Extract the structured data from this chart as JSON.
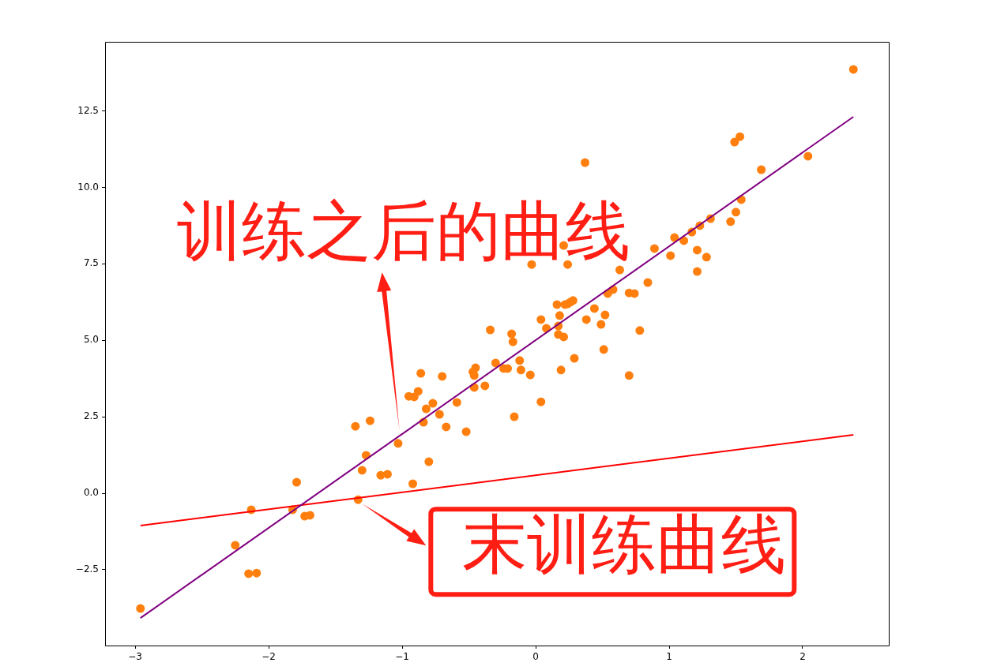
{
  "chart_data": {
    "type": "scatter",
    "xlim": [
      -3.225,
      2.645
    ],
    "ylim": [
      -4.98,
      14.76
    ],
    "xticks": [
      {
        "value": -3,
        "label": "−3"
      },
      {
        "value": -2,
        "label": "−2"
      },
      {
        "value": -1,
        "label": "−1"
      },
      0,
      1,
      2
    ],
    "yticks": [
      {
        "value": -2.5,
        "label": "−2.5"
      },
      {
        "value": 0,
        "label": "0.0"
      },
      2.5,
      {
        "value": 5,
        "label": "5.0"
      },
      7.5,
      {
        "value": 10,
        "label": "10.0"
      },
      12.5
    ],
    "grid": false,
    "legend": false,
    "marker": "circle",
    "series": [
      {
        "type": "scatter",
        "color": "#ff7f0e",
        "x": [
          -2.96,
          -2.25,
          -2.15,
          -2.09,
          -2.13,
          -1.79,
          -1.82,
          -1.73,
          -1.69,
          -1.35,
          -1.33,
          -1.3,
          -1.27,
          -1.24,
          -1.16,
          -1.11,
          -1.03,
          -0.95,
          -0.91,
          -0.88,
          -0.92,
          -0.86,
          -0.84,
          -0.82,
          -0.8,
          -0.77,
          -0.72,
          -0.7,
          -0.67,
          -0.59,
          -0.52,
          -0.47,
          -0.45,
          -0.46,
          -0.46,
          -0.38,
          -0.34,
          -0.3,
          -0.24,
          -0.21,
          -0.18,
          -0.17,
          -0.16,
          -0.12,
          -0.11,
          -0.04,
          -0.03,
          0.04,
          0.04,
          0.08,
          0.16,
          0.17,
          0.17,
          0.18,
          0.19,
          0.21,
          0.22,
          0.21,
          0.24,
          0.24,
          0.26,
          0.28,
          0.29,
          0.37,
          0.38,
          0.44,
          0.49,
          0.51,
          0.52,
          0.54,
          0.58,
          0.63,
          0.7,
          0.7,
          0.74,
          0.78,
          0.84,
          0.89,
          1.01,
          1.04,
          1.11,
          1.17,
          1.21,
          1.21,
          1.23,
          1.28,
          1.31,
          1.46,
          1.49,
          1.5,
          1.53,
          1.54,
          1.69,
          2.04,
          2.38
        ],
        "values": [
          -3.77,
          -1.7,
          -2.63,
          -2.61,
          -0.54,
          0.36,
          -0.54,
          -0.75,
          -0.72,
          2.19,
          -0.21,
          0.75,
          1.24,
          2.37,
          0.59,
          0.62,
          1.63,
          3.17,
          3.15,
          3.33,
          0.31,
          3.92,
          2.32,
          2.76,
          1.03,
          2.94,
          2.58,
          3.82,
          2.17,
          2.97,
          2.01,
          3.97,
          4.1,
          3.85,
          3.46,
          3.51,
          5.34,
          4.26,
          4.08,
          4.08,
          5.21,
          4.95,
          2.5,
          4.34,
          4.03,
          3.87,
          7.48,
          2.99,
          5.68,
          5.39,
          6.17,
          5.47,
          5.19,
          5.81,
          4.03,
          8.1,
          6.17,
          5.11,
          6.19,
          7.48,
          6.25,
          6.3,
          4.41,
          10.81,
          5.68,
          6.04,
          5.52,
          4.7,
          5.83,
          6.53,
          6.66,
          7.3,
          6.55,
          3.85,
          6.53,
          5.32,
          6.89,
          8.0,
          7.77,
          8.36,
          8.26,
          8.54,
          7.95,
          7.25,
          8.75,
          7.72,
          8.98,
          8.88,
          11.48,
          9.19,
          11.66,
          9.6,
          10.58,
          11.02,
          13.86
        ]
      },
      {
        "type": "line",
        "color": "#800080",
        "marker": "none",
        "x": [
          -2.96,
          2.38
        ],
        "values": [
          -4.08,
          12.31
        ]
      },
      {
        "type": "line",
        "color": "#ff0000",
        "marker": "none",
        "x": [
          -2.96,
          2.38
        ],
        "values": [
          -1.06,
          1.91
        ]
      }
    ],
    "annotations": [
      {
        "text": "训练之后的曲线",
        "x": -1.02,
        "y": 2.06
      },
      {
        "text": "末训练曲线",
        "x": -1.3,
        "y": -0.34
      }
    ]
  }
}
